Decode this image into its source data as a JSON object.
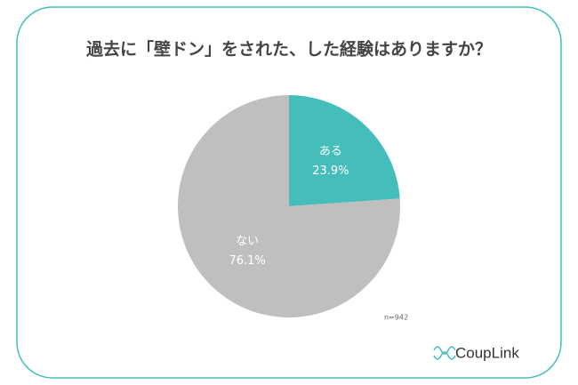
{
  "chart_data": {
    "type": "pie",
    "title": "過去に「壁ドン」をされた、した経験はありますか？",
    "categories": [
      "ある",
      "ない"
    ],
    "values": [
      23.9,
      76.1
    ],
    "value_labels": [
      "23.9%",
      "76.1%"
    ],
    "colors": [
      "#45bdbb",
      "#bfbfbf"
    ],
    "note": "n=942",
    "logo": "CoupLink"
  }
}
